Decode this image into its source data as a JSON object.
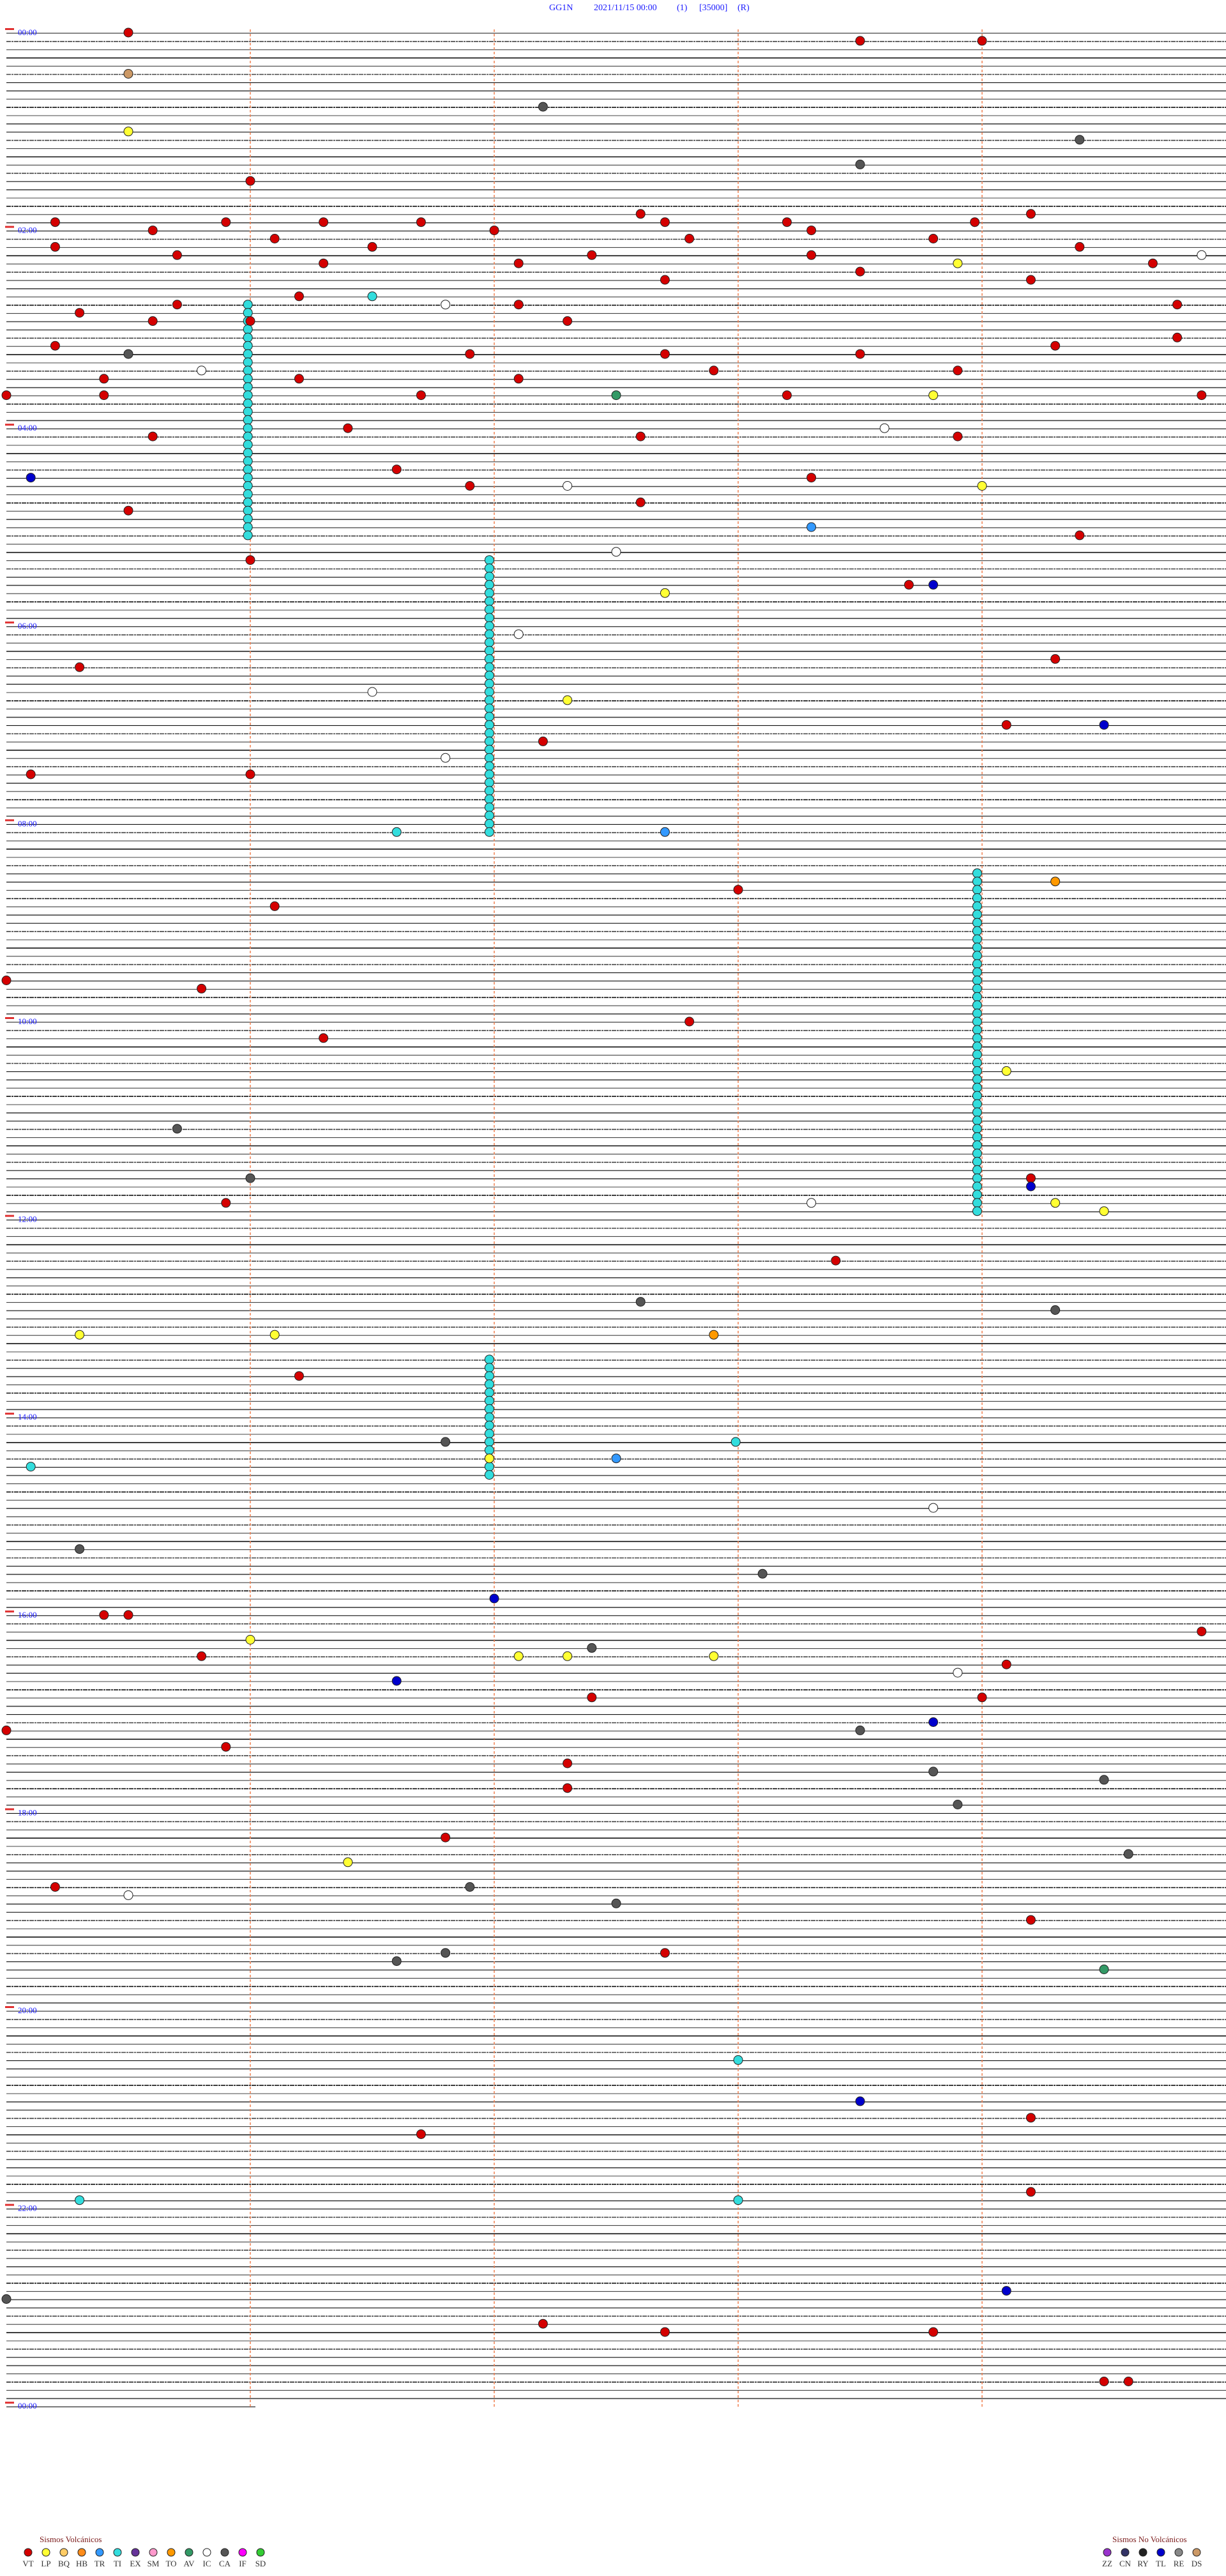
{
  "header": {
    "station": "GG1N",
    "datetime": "2021/11/15 00:00",
    "channel": "(1)",
    "scale": "[35000]",
    "mode": "(R)"
  },
  "hour_labels": [
    "00:00",
    "02:00",
    "04:00",
    "06:00",
    "08:00",
    "10:00",
    "12:00",
    "14:00",
    "16:00",
    "18:00",
    "20:00",
    "22:00",
    "00:00"
  ],
  "events": [
    {
      "minute": 0.5,
      "type": "VT"
    },
    {
      "minute": 8.5,
      "type": "VT"
    },
    {
      "minute": 9.0,
      "type": "VT"
    },
    {
      "minute": 25.5,
      "type": "DS"
    },
    {
      "minute": 47.2,
      "type": "CA"
    },
    {
      "minute": 60.5,
      "type": "LP"
    },
    {
      "minute": 69.4,
      "type": "CA"
    },
    {
      "minute": 83.5,
      "type": "CA"
    },
    {
      "minute": 91.0,
      "type": "VT"
    },
    {
      "minute": 112.6,
      "type": "VT"
    },
    {
      "minute": 114.2,
      "type": "VT"
    },
    {
      "minute": 115.2,
      "type": "VT"
    },
    {
      "minute": 115.9,
      "type": "VT"
    },
    {
      "minute": 116.3,
      "type": "VT"
    },
    {
      "minute": 116.7,
      "type": "VT"
    },
    {
      "minute": 117.7,
      "type": "VT"
    },
    {
      "minute": 118.2,
      "type": "VT"
    },
    {
      "minute": 118.97,
      "type": "VT"
    },
    {
      "minute": 120.6,
      "type": "VT"
    },
    {
      "minute": 122.0,
      "type": "VT"
    },
    {
      "minute": 123.3,
      "type": "VT"
    },
    {
      "minute": 126.1,
      "type": "VT"
    },
    {
      "minute": 127.8,
      "type": "VT"
    },
    {
      "minute": 128.8,
      "type": "VT"
    },
    {
      "minute": 130.2,
      "type": "VT"
    },
    {
      "minute": 131.5,
      "type": "VT"
    },
    {
      "minute": 134.4,
      "type": "VT"
    },
    {
      "minute": 135.7,
      "type": "VT"
    },
    {
      "minute": 137.4,
      "type": "VT"
    },
    {
      "minute": 138.3,
      "type": "VT"
    },
    {
      "minute": 139.9,
      "type": "IC"
    },
    {
      "minute": 141.3,
      "type": "VT"
    },
    {
      "minute": 142.1,
      "type": "VT"
    },
    {
      "minute": 143.9,
      "type": "LP"
    },
    {
      "minute": 144.7,
      "type": "VT"
    },
    {
      "minute": 148.5,
      "type": "VT"
    },
    {
      "minute": 152.7,
      "type": "VT"
    },
    {
      "minute": 154.2,
      "type": "VT"
    },
    {
      "minute": 161.2,
      "type": "VT"
    },
    {
      "minute": 161.5,
      "type": "TI"
    },
    {
      "minute": 165.7,
      "type": "VT"
    },
    {
      "minute": 166.8,
      "type": "IC"
    },
    {
      "minute": 167.1,
      "type": "VT"
    },
    {
      "minute": 169.8,
      "type": "VT"
    },
    {
      "minute": 170.3,
      "type": "VT"
    },
    {
      "minute": 175.6,
      "type": "VT"
    },
    {
      "minute": 176.0,
      "type": "VT"
    },
    {
      "minute": 177.3,
      "type": "VT"
    },
    {
      "minute": 189.8,
      "type": "VT"
    },
    {
      "minute": 190.2,
      "type": "VT"
    },
    {
      "minute": 194.3,
      "type": "VT"
    },
    {
      "minute": 195.5,
      "type": "CA"
    },
    {
      "minute": 196.9,
      "type": "VT"
    },
    {
      "minute": 197.7,
      "type": "VT"
    },
    {
      "minute": 198.5,
      "type": "VT"
    },
    {
      "minute": 205.8,
      "type": "IC"
    },
    {
      "minute": 207.9,
      "type": "VT"
    },
    {
      "minute": 208.9,
      "type": "VT"
    },
    {
      "minute": 210.4,
      "type": "VT"
    },
    {
      "minute": 211.2,
      "type": "VT"
    },
    {
      "minute": 212.1,
      "type": "VT"
    },
    {
      "minute": 220.0,
      "type": "VT"
    },
    {
      "minute": 220.4,
      "type": "VT"
    },
    {
      "minute": 221.7,
      "type": "VT"
    },
    {
      "minute": 222.5,
      "type": "AV"
    },
    {
      "minute": 223.2,
      "type": "VT"
    },
    {
      "minute": 223.8,
      "type": "LP"
    },
    {
      "minute": 224.9,
      "type": "VT"
    },
    {
      "minute": 241.4,
      "type": "VT"
    },
    {
      "minute": 243.6,
      "type": "IC"
    },
    {
      "minute": 245.6,
      "type": "VT"
    },
    {
      "minute": 247.6,
      "type": "VT"
    },
    {
      "minute": 248.9,
      "type": "VT"
    },
    {
      "minute": 266.6,
      "type": "VT"
    },
    {
      "minute": 270.1,
      "type": "TL"
    },
    {
      "minute": 273.3,
      "type": "VT"
    },
    {
      "minute": 276.9,
      "type": "VT"
    },
    {
      "minute": 277.3,
      "type": "IC"
    },
    {
      "minute": 279.0,
      "type": "LP"
    },
    {
      "minute": 287.6,
      "type": "VT"
    },
    {
      "minute": 290.5,
      "type": "VT"
    },
    {
      "minute": 303.3,
      "type": "TR"
    },
    {
      "minute": 309.4,
      "type": "VT"
    },
    {
      "minute": 317.5,
      "type": "IC"
    },
    {
      "minute": 321.0,
      "type": "VT"
    },
    {
      "minute": 338.7,
      "type": "VT"
    },
    {
      "minute": 338.8,
      "type": "TL"
    },
    {
      "minute": 342.7,
      "type": "LP"
    },
    {
      "minute": 367.1,
      "type": "IC"
    },
    {
      "minute": 384.3,
      "type": "VT"
    },
    {
      "minute": 385.3,
      "type": "VT"
    },
    {
      "minute": 401.5,
      "type": "IC"
    },
    {
      "minute": 407.3,
      "type": "LP"
    },
    {
      "minute": 424.1,
      "type": "VT"
    },
    {
      "minute": 424.5,
      "type": "TL"
    },
    {
      "minute": 432.2,
      "type": "VT"
    },
    {
      "minute": 441.8,
      "type": "IC"
    },
    {
      "minute": 450.1,
      "type": "VT"
    },
    {
      "minute": 451.0,
      "type": "VT"
    },
    {
      "minute": 486.6,
      "type": "TI"
    },
    {
      "minute": 487.7,
      "type": "TR"
    },
    {
      "minute": 519.3,
      "type": "TO"
    },
    {
      "minute": 523.0,
      "type": "VT"
    },
    {
      "minute": 531.1,
      "type": "VT"
    },
    {
      "minute": 575.0,
      "type": "VT"
    },
    {
      "minute": 580.8,
      "type": "VT"
    },
    {
      "minute": 602.8,
      "type": "VT"
    },
    {
      "minute": 611.3,
      "type": "VT"
    },
    {
      "minute": 634.1,
      "type": "LP"
    },
    {
      "minute": 665.7,
      "type": "CA"
    },
    {
      "minute": 696.0,
      "type": "CA"
    },
    {
      "minute": 699.2,
      "type": "VT"
    },
    {
      "minute": 704.2,
      "type": "TL"
    },
    {
      "minute": 710.9,
      "type": "VT"
    },
    {
      "minute": 713.3,
      "type": "IC"
    },
    {
      "minute": 714.3,
      "type": "LP"
    },
    {
      "minute": 719.5,
      "type": "LP"
    },
    {
      "minute": 748.4,
      "type": "VT"
    },
    {
      "minute": 772.6,
      "type": "CA"
    },
    {
      "minute": 779.3,
      "type": "CA"
    },
    {
      "minute": 790.3,
      "type": "LP"
    },
    {
      "minute": 791.1,
      "type": "LP"
    },
    {
      "minute": 792.9,
      "type": "TO"
    },
    {
      "minute": 816.2,
      "type": "VT"
    },
    {
      "minute": 856.8,
      "type": "CA"
    },
    {
      "minute": 857.99,
      "type": "TI"
    },
    {
      "minute": 866.98,
      "type": "LP"
    },
    {
      "minute": 867.5,
      "type": "TR"
    },
    {
      "minute": 870.1,
      "type": "TI"
    },
    {
      "minute": 898.8,
      "type": "IC"
    },
    {
      "minute": 920.3,
      "type": "CA"
    },
    {
      "minute": 938.1,
      "type": "CA"
    },
    {
      "minute": 952.0,
      "type": "TL"
    },
    {
      "minute": 960.4,
      "type": "VT"
    },
    {
      "minute": 960.5,
      "type": "VT"
    },
    {
      "minute": 974.9,
      "type": "VT"
    },
    {
      "minute": 976.0,
      "type": "LP"
    },
    {
      "minute": 982.4,
      "type": "CA"
    },
    {
      "minute": 985.8,
      "type": "VT"
    },
    {
      "minute": 987.1,
      "type": "LP"
    },
    {
      "minute": 987.3,
      "type": "LP"
    },
    {
      "minute": 987.9,
      "type": "LP"
    },
    {
      "minute": 994.1,
      "type": "VT"
    },
    {
      "minute": 998.9,
      "type": "IC"
    },
    {
      "minute": 1001.6,
      "type": "TL"
    },
    {
      "minute": 1012.4,
      "type": "VT"
    },
    {
      "minute": 1014.0,
      "type": "VT"
    },
    {
      "minute": 1028.8,
      "type": "TL"
    },
    {
      "minute": 1030.0,
      "type": "VT"
    },
    {
      "minute": 1033.5,
      "type": "CA"
    },
    {
      "minute": 1040.9,
      "type": "VT"
    },
    {
      "minute": 1052.3,
      "type": "VT"
    },
    {
      "minute": 1058.8,
      "type": "CA"
    },
    {
      "minute": 1064.5,
      "type": "CA"
    },
    {
      "minute": 1067.3,
      "type": "VT"
    },
    {
      "minute": 1078.9,
      "type": "CA"
    },
    {
      "minute": 1096.8,
      "type": "VT"
    },
    {
      "minute": 1109.6,
      "type": "CA"
    },
    {
      "minute": 1111.4,
      "type": "LP"
    },
    {
      "minute": 1125.2,
      "type": "VT"
    },
    {
      "minute": 1126.9,
      "type": "CA"
    },
    {
      "minute": 1130.5,
      "type": "IC"
    },
    {
      "minute": 1137.5,
      "type": "CA"
    },
    {
      "minute": 1149.2,
      "type": "VT"
    },
    {
      "minute": 1166.8,
      "type": "CA"
    },
    {
      "minute": 1167.7,
      "type": "VT"
    },
    {
      "minute": 1171.6,
      "type": "CA"
    },
    {
      "minute": 1179.5,
      "type": "AV"
    },
    {
      "minute": 1233.0,
      "type": "TI"
    },
    {
      "minute": 1258.5,
      "type": "TL"
    },
    {
      "minute": 1269.2,
      "type": "VT"
    },
    {
      "minute": 1276.7,
      "type": "VT"
    },
    {
      "minute": 1314.2,
      "type": "VT"
    },
    {
      "minute": 1315.3,
      "type": "TI"
    },
    {
      "minute": 1318.0,
      "type": "TI"
    },
    {
      "minute": 1374.1,
      "type": "TL"
    },
    {
      "minute": 1375.0,
      "type": "CA"
    },
    {
      "minute": 1392.2,
      "type": "VT"
    },
    {
      "minute": 1397.7,
      "type": "VT"
    },
    {
      "minute": 1398.8,
      "type": "VT"
    },
    {
      "minute": 1429.5,
      "type": "VT"
    },
    {
      "minute": 1429.6,
      "type": "VT"
    }
  ],
  "tremor": [
    {
      "type": "TI",
      "start": 165.99,
      "end": 305.99
    },
    {
      "type": "TI",
      "start": 321.98,
      "end": 486.98
    },
    {
      "type": "TI",
      "start": 513.98,
      "end": 718.98
    },
    {
      "type": "TI",
      "start": 806.98,
      "end": 876.98
    }
  ],
  "legend": {
    "volcanic": {
      "title": "Sismos Volcánicos",
      "items": [
        {
          "code": "VT",
          "color": "#d40000"
        },
        {
          "code": "LP",
          "color": "#ffff33"
        },
        {
          "code": "BQ",
          "color": "#ffcc66"
        },
        {
          "code": "HB",
          "color": "#ff8c1a"
        },
        {
          "code": "TR",
          "color": "#3399ff"
        },
        {
          "code": "TI",
          "color": "#33dddd"
        },
        {
          "code": "EX",
          "color": "#663399"
        },
        {
          "code": "SM",
          "color": "#ff99cc"
        },
        {
          "code": "TO",
          "color": "#ff9900"
        },
        {
          "code": "AV",
          "color": "#339966"
        },
        {
          "code": "IC",
          "color": "#ffffff"
        },
        {
          "code": "CA",
          "color": "#555555"
        },
        {
          "code": "IF",
          "color": "#ff00ff"
        },
        {
          "code": "SD",
          "color": "#33cc33"
        }
      ]
    },
    "non_volcanic": {
      "title": "Sismos No Volcánicos",
      "items": [
        {
          "code": "ZZ",
          "color": "#9933cc"
        },
        {
          "code": "CN",
          "color": "#333366"
        },
        {
          "code": "RY",
          "color": "#222222"
        },
        {
          "code": "TL",
          "color": "#0000cc"
        },
        {
          "code": "RE",
          "color": "#888888"
        },
        {
          "code": "DS",
          "color": "#cc9966"
        }
      ]
    }
  }
}
